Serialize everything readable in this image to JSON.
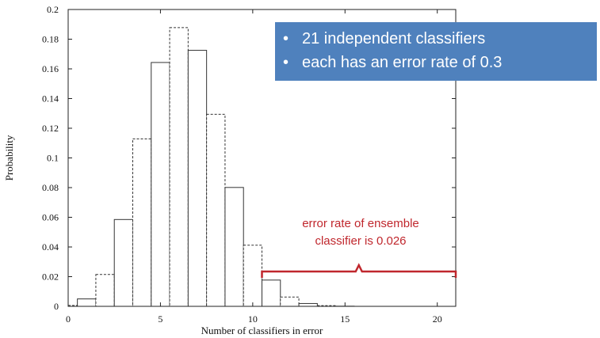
{
  "chart_data": {
    "type": "bar",
    "xlabel": "Number of classifiers in error",
    "ylabel": "Probability",
    "xlim": [
      0,
      21
    ],
    "ylim": [
      0,
      0.2
    ],
    "x_ticks": [
      0,
      5,
      10,
      15,
      20
    ],
    "y_ticks": [
      0,
      0.02,
      0.04,
      0.06,
      0.08,
      0.1,
      0.12,
      0.14,
      0.16,
      0.18,
      0.2
    ],
    "y_tick_labels": [
      "0",
      "0.02",
      "0.04",
      "0.06",
      "0.08",
      "0.1",
      "0.12",
      "0.14",
      "0.16",
      "0.18",
      "0.2"
    ],
    "grid": false,
    "x": [
      0,
      1,
      2,
      3,
      4,
      5,
      6,
      7,
      8,
      9,
      10,
      11,
      12,
      13,
      14,
      15,
      16,
      17,
      18,
      19,
      20,
      21
    ],
    "values": [
      0.0006,
      0.005,
      0.0215,
      0.0585,
      0.1128,
      0.1643,
      0.1878,
      0.1725,
      0.1294,
      0.0801,
      0.0412,
      0.0177,
      0.0063,
      0.0019,
      0.0005,
      0.0001,
      0,
      0,
      0,
      0,
      0,
      0
    ],
    "annotations": [
      {
        "text": "error rate of ensemble classifier is 0.026",
        "brace_from_x": 10.5,
        "brace_to_x": 21
      }
    ]
  },
  "callout": {
    "items": [
      "21 independent classifiers",
      "each has an error rate of 0.3"
    ],
    "bullet": "•",
    "background": "#4f81bd"
  },
  "annotation": {
    "line1": "error rate of ensemble",
    "line2": "classifier is 0.026",
    "color": "#c0272d"
  }
}
